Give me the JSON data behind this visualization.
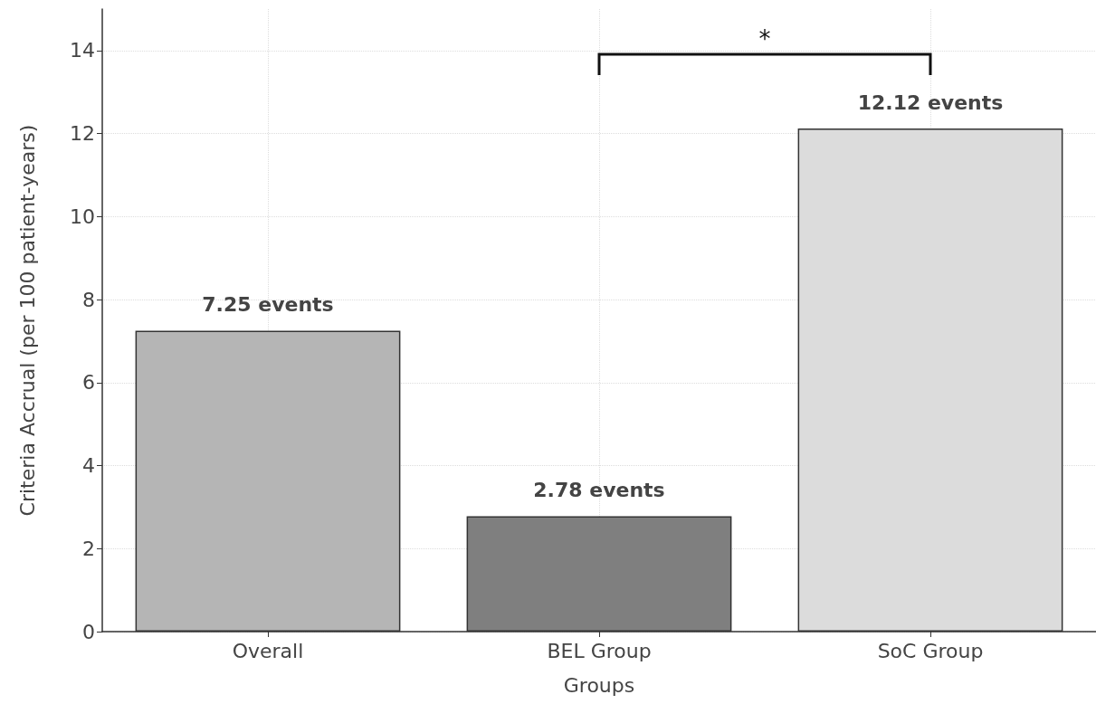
{
  "chart_data": {
    "type": "bar",
    "xlabel": "Groups",
    "ylabel": "Criteria Accrual (per 100 patient-years)",
    "categories": [
      "Overall",
      "BEL Group",
      "SoC Group"
    ],
    "values": [
      7.25,
      2.78,
      12.12
    ],
    "value_labels": [
      "7.25 events",
      "2.78 events",
      "12.12 events"
    ],
    "colors": [
      "#b5b5b5",
      "#7f7f7f",
      "#dcdcdc"
    ],
    "ylim": [
      0,
      15
    ],
    "yticks": [
      0,
      2,
      4,
      6,
      8,
      10,
      12,
      14
    ],
    "grid": true,
    "annotations": [
      "*"
    ]
  }
}
